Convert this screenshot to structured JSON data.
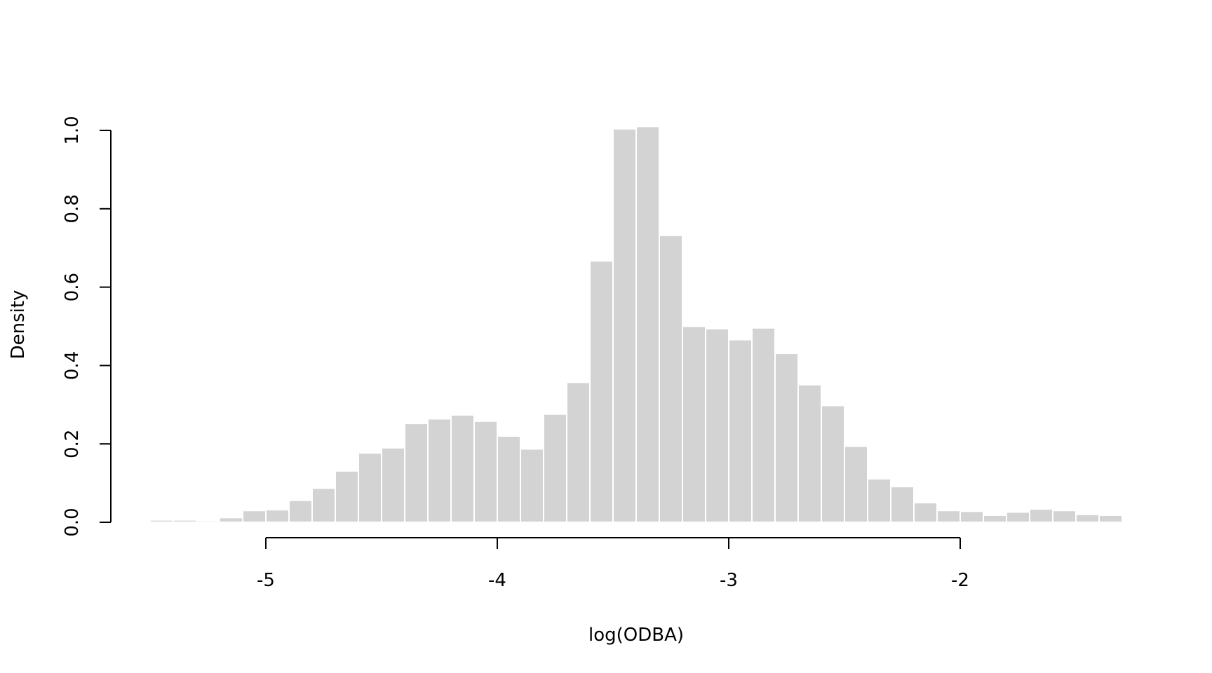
{
  "chart_data": {
    "type": "bar",
    "subtype": "histogram",
    "title": "",
    "xlabel": "log(ODBA)",
    "ylabel": "Density",
    "bin_width": 0.1,
    "bin_start": -5.5,
    "bin_end": -1.3,
    "xlim": [
      -5.5,
      -1.3
    ],
    "ylim": [
      0,
      1.0
    ],
    "x_ticks": [
      -5,
      -4,
      -3,
      -2
    ],
    "x_tick_labels": [
      "-5",
      "-4",
      "-3",
      "-2"
    ],
    "y_ticks": [
      0,
      0.2,
      0.4,
      0.6,
      0.8,
      1.0
    ],
    "y_tick_labels": [
      "0.0",
      "0.2",
      "0.4",
      "0.6",
      "0.8",
      "1.0"
    ],
    "grid": false,
    "bar_color": "#d3d3d3",
    "bar_border_color": "#ffffff",
    "values": [
      0.006,
      0.006,
      0.004,
      0.012,
      0.03,
      0.032,
      0.056,
      0.087,
      0.131,
      0.177,
      0.19,
      0.252,
      0.264,
      0.274,
      0.258,
      0.22,
      0.187,
      0.276,
      0.357,
      0.667,
      1.004,
      1.01,
      0.732,
      0.5,
      0.494,
      0.466,
      0.496,
      0.431,
      0.351,
      0.298,
      0.194,
      0.111,
      0.091,
      0.05,
      0.03,
      0.028,
      0.018,
      0.026,
      0.034,
      0.03,
      0.02,
      0.018
    ]
  }
}
